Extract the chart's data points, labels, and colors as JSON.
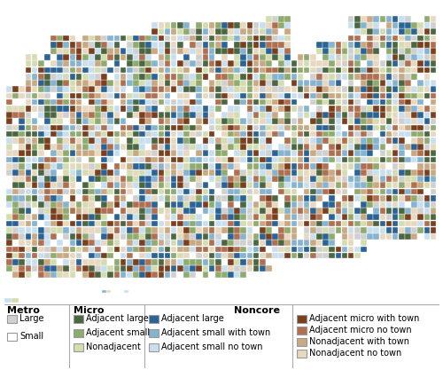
{
  "legend_sections": {
    "Metro": {
      "label": "Metro",
      "items": [
        {
          "label": "Large",
          "color": "#d0d0d0",
          "edgecolor": "#999999"
        },
        {
          "label": "Small",
          "color": "#ffffff",
          "edgecolor": "#999999"
        }
      ]
    },
    "Micro": {
      "label": "Micro",
      "items": [
        {
          "label": "Adjacent large",
          "color": "#4a6741",
          "edgecolor": "#999999"
        },
        {
          "label": "Adjacent small",
          "color": "#8fac6e",
          "edgecolor": "#999999"
        },
        {
          "label": "Nonadjacent",
          "color": "#d4ddb0",
          "edgecolor": "#999999"
        }
      ]
    },
    "Noncore_left": {
      "label": "Noncore",
      "items": [
        {
          "label": "Adjacent large",
          "color": "#2a6496",
          "edgecolor": "#999999"
        },
        {
          "label": "Adjacent small with town",
          "color": "#85b4d1",
          "edgecolor": "#999999"
        },
        {
          "label": "Adjacent small no town",
          "color": "#c8dff0",
          "edgecolor": "#999999"
        }
      ]
    },
    "Noncore_right": {
      "label": "",
      "items": [
        {
          "label": "Adjacent micro with town",
          "color": "#7b3f1e",
          "edgecolor": "#999999"
        },
        {
          "label": "Adjacent micro no town",
          "color": "#b07050",
          "edgecolor": "#999999"
        },
        {
          "label": "Nonadjacent with town",
          "color": "#c9a882",
          "edgecolor": "#999999"
        },
        {
          "label": "Nonadjacent no town",
          "color": "#e8d8c0",
          "edgecolor": "#999999"
        }
      ]
    }
  },
  "map_colors": [
    "#d0d0d0",
    "#ffffff",
    "#4a6741",
    "#8fac6e",
    "#d4ddb0",
    "#2a6496",
    "#85b4d1",
    "#c8dff0",
    "#7b3f1e",
    "#b07050",
    "#c9a882",
    "#e8d8c0"
  ],
  "background_color": "#ffffff",
  "legend_fontsize": 7.0,
  "section_header_fontsize": 8.0,
  "divider_color": "#aaaaaa"
}
